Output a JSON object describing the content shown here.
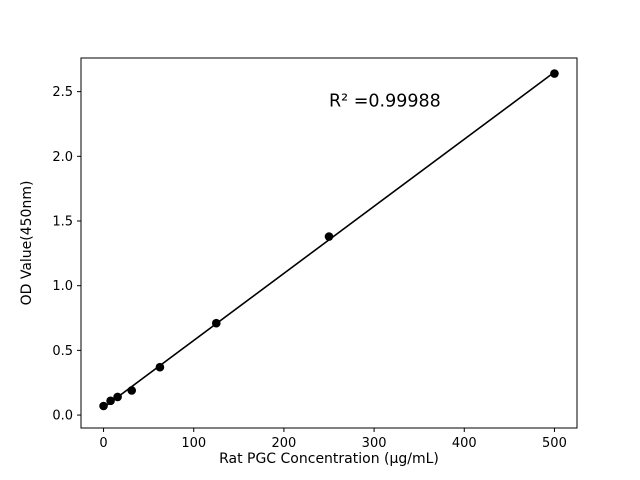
{
  "figure": {
    "background": "#ffffff"
  },
  "chart_data": {
    "type": "scatter",
    "title": "",
    "xlabel": "Rat PGC Concentration (μg/mL)",
    "ylabel": "OD Value(450nm)",
    "x": [
      0,
      7.8,
      15.6,
      31.25,
      62.5,
      125,
      250,
      500
    ],
    "y": [
      0.07,
      0.11,
      0.14,
      0.19,
      0.37,
      0.71,
      1.38,
      2.64
    ],
    "fit_line": "linear-regression",
    "annotation": {
      "text": "R² =0.99988",
      "x": 250,
      "y": 2.43
    },
    "xticks": [
      0,
      100,
      200,
      300,
      400,
      500
    ],
    "yticks": [
      0.0,
      0.5,
      1.0,
      1.5,
      2.0,
      2.5
    ],
    "xlim": [
      -25,
      525
    ],
    "ylim": [
      -0.1,
      2.76
    ],
    "grid": false,
    "legend": "none",
    "colors": {
      "marker": "#000000",
      "line": "#000000",
      "axis": "#000000",
      "background": "#ffffff"
    }
  }
}
